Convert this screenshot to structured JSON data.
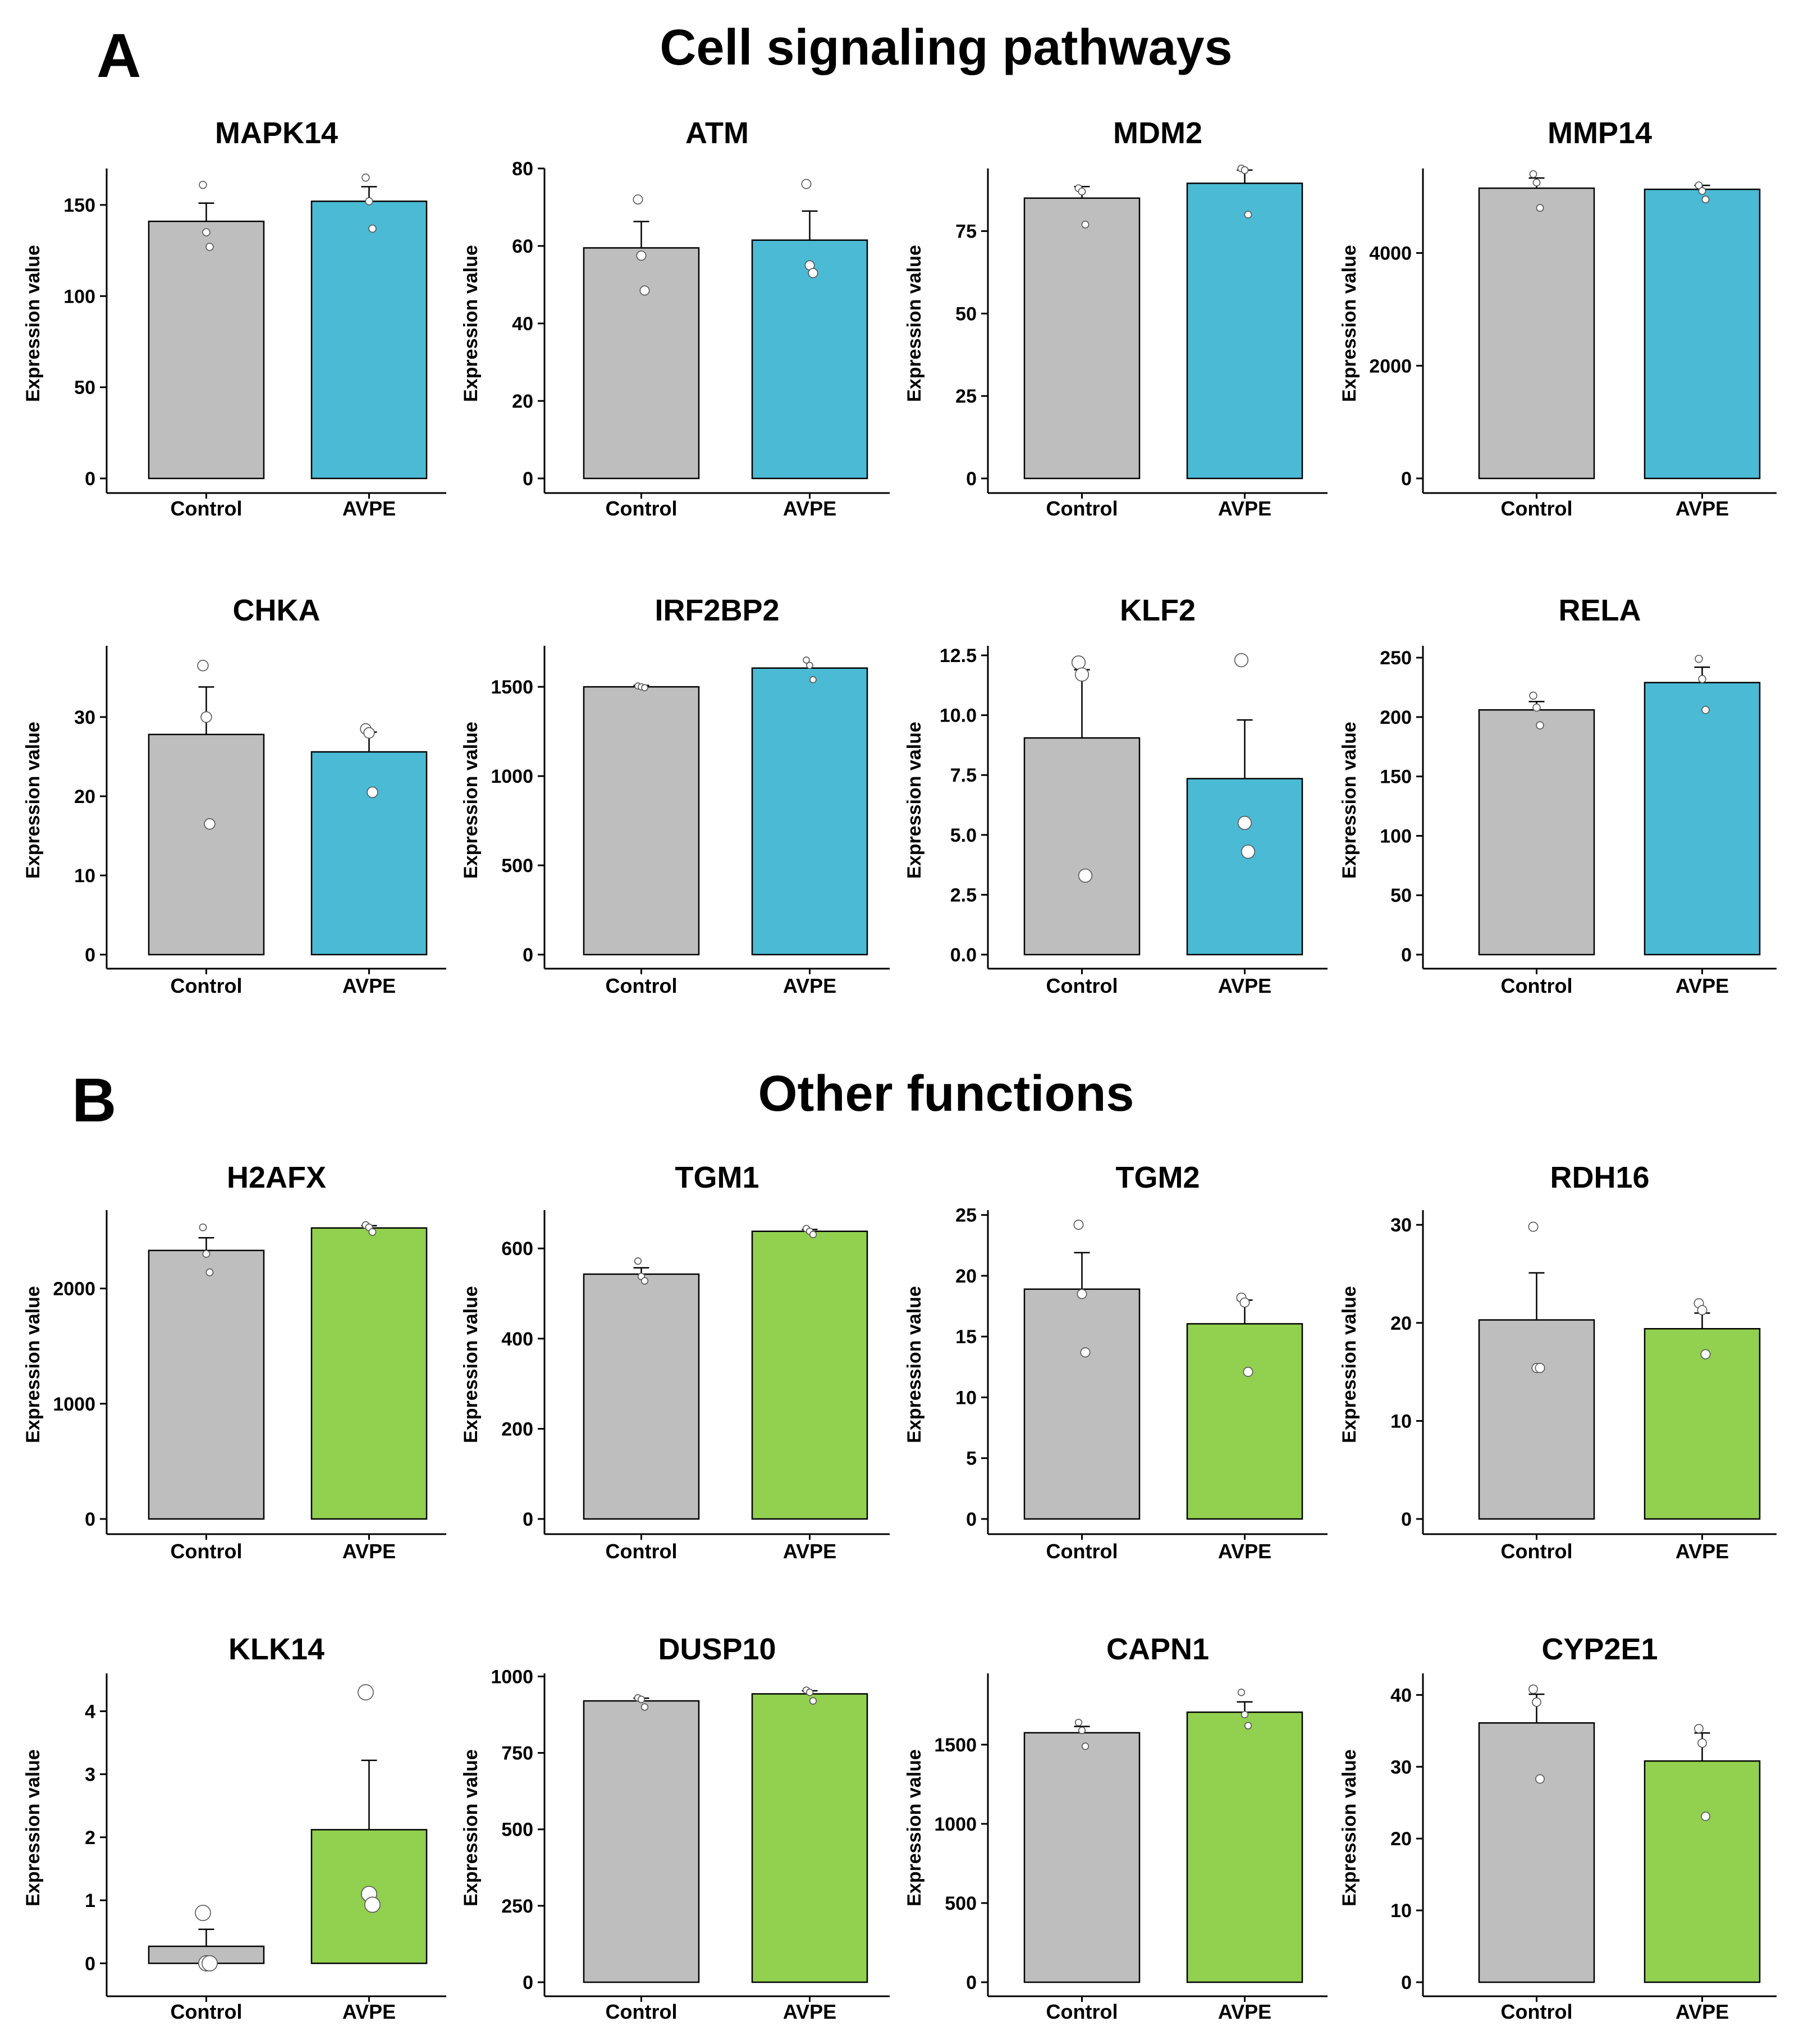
{
  "panels": {
    "A": {
      "letter": "A",
      "title": "Cell signaling pathways"
    },
    "B": {
      "letter": "B",
      "title": "Other functions"
    }
  },
  "colors": {
    "control": "#bebebe",
    "avpe_A": "#4bbad4",
    "avpe_B": "#92d050",
    "axis": "#000000",
    "point": "#ffffff"
  },
  "chart_data": [
    {
      "panel": "A",
      "type": "bar",
      "title": "MAPK14",
      "ylabel": "Expression value",
      "categories": [
        "Control",
        "AVPE"
      ],
      "values": [
        141,
        152
      ],
      "errors": [
        10,
        8
      ],
      "ylim": [
        0,
        170
      ],
      "yticks": [
        0,
        50,
        100,
        150
      ],
      "yticklabels": [
        "0",
        "50",
        "100",
        "150"
      ],
      "points": [
        [
          161,
          135,
          127
        ],
        [
          165,
          152,
          137
        ]
      ],
      "point_scale": 0.4
    },
    {
      "panel": "A",
      "type": "bar",
      "title": "ATM",
      "ylabel": "Expression value",
      "categories": [
        "Control",
        "AVPE"
      ],
      "values": [
        59.5,
        61.5
      ],
      "errors": [
        6.8,
        7.5
      ],
      "ylim": [
        0,
        80
      ],
      "yticks": [
        0,
        20,
        40,
        60,
        80
      ],
      "yticklabels": [
        "0",
        "20",
        "40",
        "60",
        "80"
      ],
      "points": [
        [
          72,
          57.5,
          48.5
        ],
        [
          76,
          55,
          53
        ]
      ],
      "point_scale": 0.7
    },
    {
      "panel": "A",
      "type": "bar",
      "title": "MDM2",
      "ylabel": "Expression value",
      "categories": [
        "Control",
        "AVPE"
      ],
      "values": [
        85,
        89.5
      ],
      "errors": [
        3.5,
        4
      ],
      "ylim": [
        0,
        94
      ],
      "yticks": [
        0,
        25,
        50,
        75
      ],
      "yticklabels": [
        "0",
        "25",
        "50",
        "75"
      ],
      "points": [
        [
          88,
          87,
          77
        ],
        [
          94,
          93.5,
          80
        ]
      ],
      "point_scale": 0.35
    },
    {
      "panel": "A",
      "type": "bar",
      "title": "MMP14",
      "ylabel": "Expression value",
      "categories": [
        "Control",
        "AVPE"
      ],
      "values": [
        5150,
        5130
      ],
      "errors": [
        180,
        70
      ],
      "ylim": [
        0,
        5500
      ],
      "yticks": [
        0,
        2000,
        4000
      ],
      "yticklabels": [
        "0",
        "2000",
        "4000"
      ],
      "points": [
        [
          5400,
          5250,
          4800
        ],
        [
          5200,
          5100,
          4950
        ]
      ],
      "point_scale": 0.35
    },
    {
      "panel": "A",
      "type": "bar",
      "title": "CHKA",
      "ylabel": "Expression value",
      "categories": [
        "Control",
        "AVPE"
      ],
      "values": [
        27.8,
        25.6
      ],
      "errors": [
        6,
        2.5
      ],
      "ylim": [
        0,
        39
      ],
      "yticks": [
        0,
        10,
        20,
        30
      ],
      "yticklabels": [
        "0",
        "10",
        "20",
        "30"
      ],
      "points": [
        [
          36.5,
          30,
          16.5
        ],
        [
          28.5,
          28,
          20.5
        ]
      ],
      "point_scale": 0.9
    },
    {
      "panel": "A",
      "type": "bar",
      "title": "IRF2BP2",
      "ylabel": "Expression value",
      "categories": [
        "Control",
        "AVPE"
      ],
      "values": [
        1500,
        1605
      ],
      "errors": [
        8,
        0
      ],
      "ylim": [
        0,
        1730
      ],
      "yticks": [
        0,
        500,
        1000,
        1500
      ],
      "yticklabels": [
        "0",
        "500",
        "1000",
        "1500"
      ],
      "points": [
        [
          1505,
          1500,
          1495
        ],
        [
          1650,
          1620,
          1540
        ]
      ],
      "point_scale": 0.25
    },
    {
      "panel": "A",
      "type": "bar",
      "title": "KLF2",
      "ylabel": "Expression value",
      "categories": [
        "Control",
        "AVPE"
      ],
      "values": [
        9.05,
        7.35
      ],
      "errors": [
        2.85,
        2.45
      ],
      "ylim": [
        0,
        12.9
      ],
      "yticks": [
        0,
        2.5,
        5,
        7.5,
        10,
        12.5
      ],
      "yticklabels": [
        "0.0",
        "2.5",
        "5.0",
        "7.5",
        "10.0",
        "12.5"
      ],
      "points": [
        [
          12.2,
          11.7,
          3.3
        ],
        [
          12.3,
          5.5,
          4.3
        ]
      ],
      "point_scale": 1.3
    },
    {
      "panel": "A",
      "type": "bar",
      "title": "RELA",
      "ylabel": "Expression value",
      "categories": [
        "Control",
        "AVPE"
      ],
      "values": [
        206,
        229
      ],
      "errors": [
        7,
        13
      ],
      "ylim": [
        0,
        260
      ],
      "yticks": [
        0,
        50,
        100,
        150,
        200,
        250
      ],
      "yticklabels": [
        "0",
        "50",
        "100",
        "150",
        "200",
        "250"
      ],
      "points": [
        [
          218,
          208,
          193
        ],
        [
          249,
          232,
          206
        ]
      ],
      "point_scale": 0.4
    },
    {
      "panel": "B",
      "type": "bar",
      "title": "H2AFX",
      "ylabel": "Expression value",
      "categories": [
        "Control",
        "AVPE"
      ],
      "values": [
        2330,
        2525
      ],
      "errors": [
        110,
        20
      ],
      "ylim": [
        0,
        2680
      ],
      "yticks": [
        0,
        1000,
        2000
      ],
      "yticklabels": [
        "0",
        "1000",
        "2000"
      ],
      "points": [
        [
          2530,
          2300,
          2140
        ],
        [
          2550,
          2530,
          2490
        ]
      ],
      "point_scale": 0.35
    },
    {
      "panel": "B",
      "type": "bar",
      "title": "TGM1",
      "ylabel": "Expression value",
      "categories": [
        "Control",
        "AVPE"
      ],
      "values": [
        543,
        638
      ],
      "errors": [
        14,
        4
      ],
      "ylim": [
        0,
        685
      ],
      "yticks": [
        0,
        200,
        400,
        600
      ],
      "yticklabels": [
        "0",
        "200",
        "400",
        "600"
      ],
      "points": [
        [
          572,
          538,
          528
        ],
        [
          644,
          638,
          631
        ]
      ],
      "point_scale": 0.3
    },
    {
      "panel": "B",
      "type": "bar",
      "title": "TGM2",
      "ylabel": "Expression value",
      "categories": [
        "Control",
        "AVPE"
      ],
      "values": [
        18.9,
        16.05
      ],
      "errors": [
        3,
        1.95
      ],
      "ylim": [
        0,
        25.4
      ],
      "yticks": [
        0,
        5,
        10,
        15,
        20,
        25
      ],
      "yticklabels": [
        "0",
        "5",
        "10",
        "15",
        "20",
        "25"
      ],
      "points": [
        [
          24.2,
          18.5,
          13.7
        ],
        [
          18.2,
          17.8,
          12.1
        ]
      ],
      "point_scale": 0.7
    },
    {
      "panel": "B",
      "type": "bar",
      "title": "RDH16",
      "ylabel": "Expression value",
      "categories": [
        "Control",
        "AVPE"
      ],
      "values": [
        20.3,
        19.4
      ],
      "errors": [
        4.8,
        1.6
      ],
      "ylim": [
        0,
        31.5
      ],
      "yticks": [
        0,
        10,
        20,
        30
      ],
      "yticklabels": [
        "0",
        "10",
        "20",
        "30"
      ],
      "points": [
        [
          29.8,
          15.4,
          15.4
        ],
        [
          22,
          21.3,
          16.8
        ]
      ],
      "point_scale": 0.7
    },
    {
      "panel": "B",
      "type": "bar",
      "title": "KLK14",
      "ylabel": "Expression value",
      "categories": [
        "Control",
        "AVPE"
      ],
      "values": [
        0.27,
        2.12
      ],
      "errors": [
        0.27,
        1.1
      ],
      "ylim": [
        -0.3,
        4.6
      ],
      "yticks": [
        0,
        1,
        2,
        3,
        4
      ],
      "yticklabels": [
        "0",
        "1",
        "2",
        "3",
        "4"
      ],
      "points": [
        [
          0.8,
          0,
          0
        ],
        [
          4.3,
          1.1,
          0.93
        ]
      ],
      "point_scale": 1.6
    },
    {
      "panel": "B",
      "type": "bar",
      "title": "DUSP10",
      "ylabel": "Expression value",
      "categories": [
        "Control",
        "AVPE"
      ],
      "values": [
        920,
        943
      ],
      "errors": [
        9,
        10
      ],
      "ylim": [
        0,
        1010
      ],
      "yticks": [
        0,
        250,
        500,
        750,
        1000
      ],
      "yticklabels": [
        "0",
        "250",
        "500",
        "750",
        "1000"
      ],
      "points": [
        [
          930,
          925,
          900
        ],
        [
          955,
          948,
          920
        ]
      ],
      "point_scale": 0.3
    },
    {
      "panel": "B",
      "type": "bar",
      "title": "CAPN1",
      "ylabel": "Expression value",
      "categories": [
        "Control",
        "AVPE"
      ],
      "values": [
        1575,
        1705
      ],
      "errors": [
        40,
        65
      ],
      "ylim": [
        0,
        1950
      ],
      "yticks": [
        0,
        500,
        1000,
        1500
      ],
      "yticklabels": [
        "0",
        "500",
        "1000",
        "1500"
      ],
      "points": [
        [
          1640,
          1590,
          1490
        ],
        [
          1830,
          1690,
          1620
        ]
      ],
      "point_scale": 0.3
    },
    {
      "panel": "B",
      "type": "bar",
      "title": "CYP2E1",
      "ylabel": "Expression value",
      "categories": [
        "Control",
        "AVPE"
      ],
      "values": [
        36.1,
        30.8
      ],
      "errors": [
        4,
        3.9
      ],
      "ylim": [
        0,
        43
      ],
      "yticks": [
        0,
        10,
        20,
        30,
        40
      ],
      "yticklabels": [
        "0",
        "10",
        "20",
        "30",
        "40"
      ],
      "points": [
        [
          40.8,
          39,
          28.3
        ],
        [
          35.3,
          33.3,
          23.1
        ]
      ],
      "point_scale": 0.6
    }
  ]
}
